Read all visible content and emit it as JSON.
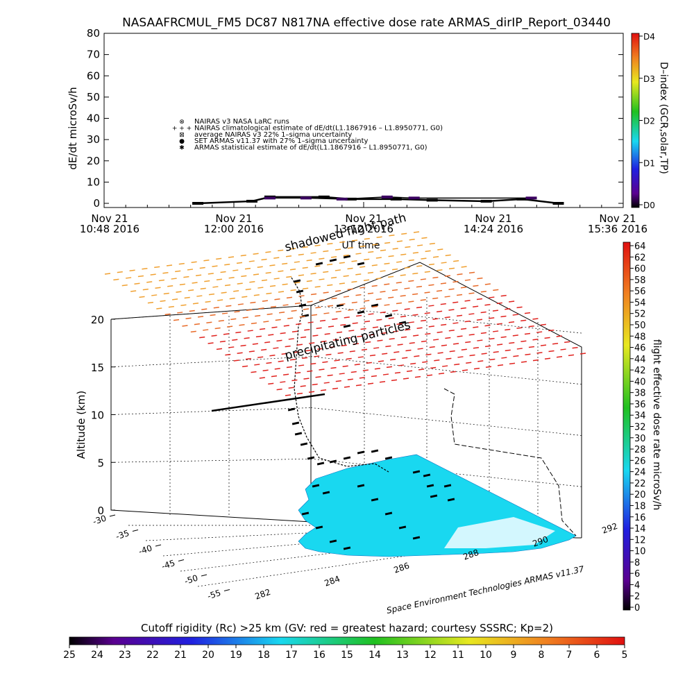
{
  "title": "NASAAFRCMUL_FM5 DC87 N817NA effective dose rate ARMAS_dirIP_Report_03440",
  "colors": {
    "cyan": "#19d8f0",
    "red_dash": "#e0221e",
    "orange_dash": "#f0a030",
    "black": "#000000"
  },
  "top_panel": {
    "ylabel": "dE/dt microSv/h",
    "yticks": [
      "0",
      "10",
      "20",
      "30",
      "40",
      "50",
      "60",
      "70",
      "80"
    ],
    "xticks": [
      {
        "line1": "Nov 21",
        "line2": "10:48 2016"
      },
      {
        "line1": "Nov 21",
        "line2": "12:00 2016"
      },
      {
        "line1": "Nov 21",
        "line2": "13:12 2016"
      },
      {
        "line1": "Nov 21",
        "line2": "14:24 2016"
      },
      {
        "line1": "Nov 21",
        "line2": "15:36 2016"
      }
    ],
    "xlabel": "UT time",
    "legend": [
      {
        "symbol": "⊗",
        "text": "NAIRAS v3 NASA LaRC runs"
      },
      {
        "symbol": "+ + +",
        "text": "NAIRAS climatological estimate of dE/dt(L1.1867916 – L1.8950771, G0)"
      },
      {
        "symbol": "⊠",
        "text": "average NAIRAS v3 22% 1–sigma uncertainty"
      },
      {
        "symbol": "●",
        "text": "SET ARMAS v11.37 with 27% 1–sigma uncertainty"
      },
      {
        "symbol": "✱",
        "text": "ARMAS statistical estimate of dE/dt(L1.1867916 – L1.8950771, G0)"
      }
    ],
    "dindex_label": "D–index (GCR,solar,TP)",
    "dindex_ticks": [
      "D0",
      "D1",
      "D2",
      "D3",
      "D4"
    ]
  },
  "main_panel": {
    "zlabel": "Altitude (km)",
    "zticks": [
      "0",
      "5",
      "10",
      "15",
      "20"
    ],
    "lat_ticks": [
      "-30",
      "-35",
      "-40",
      "-45",
      "-50",
      "-55"
    ],
    "lon_ticks": [
      "282",
      "284",
      "286",
      "288",
      "290",
      "292"
    ],
    "annotations": {
      "shadowed": "shadowed flight path",
      "precip": "precipitating particles",
      "credit": "Space Environment Technologies ARMAS v11.37"
    },
    "colorbar_label": "flight effective dose rate microSv/h",
    "colorbar_ticks": [
      "0",
      "2",
      "4",
      "6",
      "8",
      "10",
      "12",
      "14",
      "16",
      "18",
      "20",
      "22",
      "24",
      "26",
      "28",
      "30",
      "32",
      "34",
      "36",
      "38",
      "40",
      "42",
      "44",
      "46",
      "48",
      "50",
      "52",
      "54",
      "56",
      "58",
      "60",
      "62",
      "64"
    ]
  },
  "bottom_bar": {
    "label": "Cutoff rigidity (Rc) >25 km (GV: red = greatest hazard; courtesy SSSRC; Kp=2)",
    "ticks": [
      "25",
      "24",
      "23",
      "22",
      "21",
      "20",
      "19",
      "18",
      "17",
      "16",
      "15",
      "14",
      "13",
      "12",
      "11",
      "10",
      "9",
      "8",
      "7",
      "6",
      "5"
    ]
  },
  "chart_data": {
    "type": "line",
    "title": "NASAAFRCMUL_FM5 DC87 N817NA effective dose rate ARMAS_dirIP_Report_03440",
    "xlabel": "UT time",
    "ylabel": "dE/dt microSv/h",
    "ylim": [
      0,
      80
    ],
    "xlim": [
      "2016-11-21 10:48",
      "2016-11-21 15:36"
    ],
    "series": [
      {
        "name": "SET ARMAS v11.37 with 27% 1–sigma uncertainty",
        "x": [
          "11:40",
          "12:10",
          "12:20",
          "12:50",
          "13:05",
          "13:30",
          "13:50",
          "14:20",
          "14:40",
          "15:00"
        ],
        "values": [
          0,
          1,
          3,
          3,
          2,
          2,
          1.5,
          1,
          2,
          0
        ]
      },
      {
        "name": "NAIRAS v3 NASA LaRC runs",
        "x": [
          "12:20",
          "12:40",
          "13:00",
          "13:25",
          "13:40",
          "14:45"
        ],
        "values": [
          2.5,
          2.5,
          2,
          3,
          2.5,
          2.5
        ]
      }
    ]
  }
}
